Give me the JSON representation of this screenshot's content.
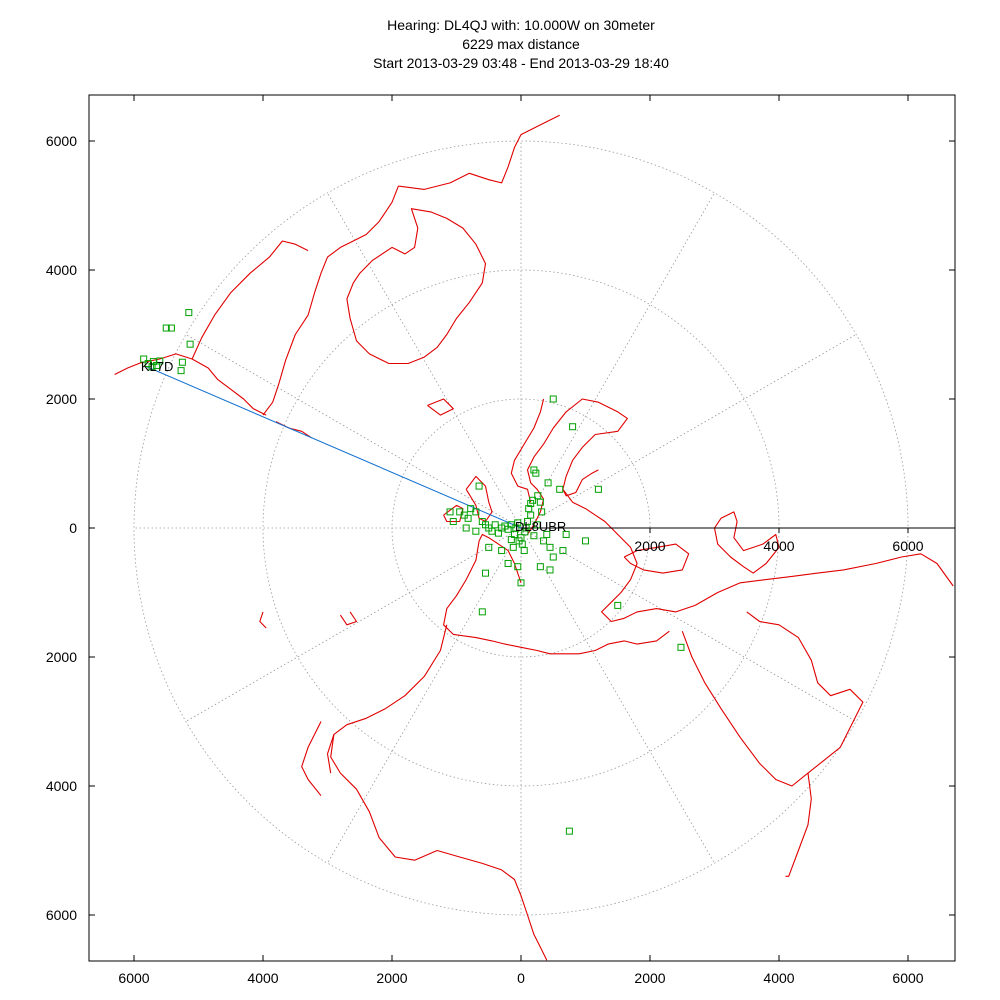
{
  "title": {
    "line1": "Hearing: DL4QJ with: 10.000W on 30meter",
    "line2": "6229 max distance",
    "line3": "Start 2013-03-29 03:48 - End 2013-03-29 18:40"
  },
  "axes": {
    "x_ticks": [
      "6000",
      "4000",
      "2000",
      "0",
      "2000",
      "4000",
      "6000"
    ],
    "y_ticks": [
      "6000",
      "4000",
      "2000",
      "0",
      "2000",
      "4000",
      "6000"
    ],
    "inner_x_ticks": [
      "2000",
      "4000",
      "6000"
    ]
  },
  "colors": {
    "coastline": "#e00000",
    "spots": "#00a000",
    "path": "#1070d0",
    "grid": "#9a9a9a",
    "axis": "#000000"
  },
  "stations": {
    "home": {
      "label": "DL8UBR",
      "x": 0,
      "y": 0
    },
    "far": {
      "label": "KL7D",
      "x": -5800,
      "y": 2500
    }
  },
  "chart_data": {
    "type": "scatter",
    "projection": "azimuthal equidistant",
    "units": "km",
    "xlim": [
      -6700,
      6700
    ],
    "ylim": [
      -6700,
      6700
    ],
    "range_rings": [
      2000,
      4000,
      6000
    ],
    "bearing_lines_deg": [
      0,
      30,
      60,
      90,
      120,
      150,
      180,
      210,
      240,
      270,
      300,
      330
    ],
    "series": [
      {
        "points": [
          {
            "x": -5850,
            "y": 2620
          },
          {
            "x": -5780,
            "y": 2550
          },
          {
            "x": -5700,
            "y": 2580
          },
          {
            "x": -5650,
            "y": 2520
          },
          {
            "x": -5600,
            "y": 2590
          },
          {
            "x": -5720,
            "y": 2500
          },
          {
            "x": -5500,
            "y": 3100
          },
          {
            "x": -5420,
            "y": 3100
          },
          {
            "x": -5150,
            "y": 3340
          },
          {
            "x": -5130,
            "y": 2850
          },
          {
            "x": -5250,
            "y": 2570
          },
          {
            "x": -5270,
            "y": 2440
          },
          {
            "x": -1100,
            "y": 250
          },
          {
            "x": -1050,
            "y": 100
          },
          {
            "x": -950,
            "y": 250
          },
          {
            "x": -880,
            "y": 200
          },
          {
            "x": -820,
            "y": 150
          },
          {
            "x": -780,
            "y": 300
          },
          {
            "x": -700,
            "y": 250
          },
          {
            "x": -650,
            "y": 650
          },
          {
            "x": -600,
            "y": 100
          },
          {
            "x": -550,
            "y": 50
          },
          {
            "x": -500,
            "y": 0
          },
          {
            "x": -450,
            "y": -50
          },
          {
            "x": -400,
            "y": 50
          },
          {
            "x": -350,
            "y": -80
          },
          {
            "x": -300,
            "y": 0
          },
          {
            "x": -250,
            "y": 30
          },
          {
            "x": -200,
            "y": -20
          },
          {
            "x": -150,
            "y": 50
          },
          {
            "x": -100,
            "y": -100
          },
          {
            "x": -80,
            "y": 0
          },
          {
            "x": -50,
            "y": 80
          },
          {
            "x": -30,
            "y": -200
          },
          {
            "x": 0,
            "y": -150
          },
          {
            "x": 20,
            "y": -250
          },
          {
            "x": 50,
            "y": -350
          },
          {
            "x": 80,
            "y": 0
          },
          {
            "x": 100,
            "y": 100
          },
          {
            "x": 120,
            "y": 300
          },
          {
            "x": 150,
            "y": 380
          },
          {
            "x": 180,
            "y": 430
          },
          {
            "x": 200,
            "y": 900
          },
          {
            "x": 230,
            "y": 850
          },
          {
            "x": 260,
            "y": 500
          },
          {
            "x": 300,
            "y": 400
          },
          {
            "x": 320,
            "y": 250
          },
          {
            "x": 350,
            "y": -200
          },
          {
            "x": 400,
            "y": -100
          },
          {
            "x": 450,
            "y": -300
          },
          {
            "x": 500,
            "y": -450
          },
          {
            "x": 420,
            "y": 700
          },
          {
            "x": 500,
            "y": 2000
          },
          {
            "x": 600,
            "y": 600
          },
          {
            "x": 650,
            "y": -350
          },
          {
            "x": 700,
            "y": -100
          },
          {
            "x": 800,
            "y": 1570
          },
          {
            "x": 1000,
            "y": -200
          },
          {
            "x": 1200,
            "y": 600
          },
          {
            "x": 1500,
            "y": -1200
          },
          {
            "x": 2480,
            "y": -1850
          },
          {
            "x": 750,
            "y": -4700
          },
          {
            "x": -200,
            "y": -550
          },
          {
            "x": -300,
            "y": -350
          },
          {
            "x": -550,
            "y": -700
          },
          {
            "x": -500,
            "y": -300
          },
          {
            "x": -600,
            "y": -1300
          },
          {
            "x": 0,
            "y": -850
          },
          {
            "x": -50,
            "y": -600
          },
          {
            "x": 300,
            "y": -600
          },
          {
            "x": 450,
            "y": -650
          },
          {
            "x": -150,
            "y": -180
          },
          {
            "x": 60,
            "y": -60
          },
          {
            "x": -120,
            "y": -300
          },
          {
            "x": 200,
            "y": -120
          },
          {
            "x": 250,
            "y": 50
          },
          {
            "x": -700,
            "y": -50
          },
          {
            "x": -850,
            "y": 0
          },
          {
            "x": 150,
            "y": 200
          }
        ]
      }
    ]
  }
}
